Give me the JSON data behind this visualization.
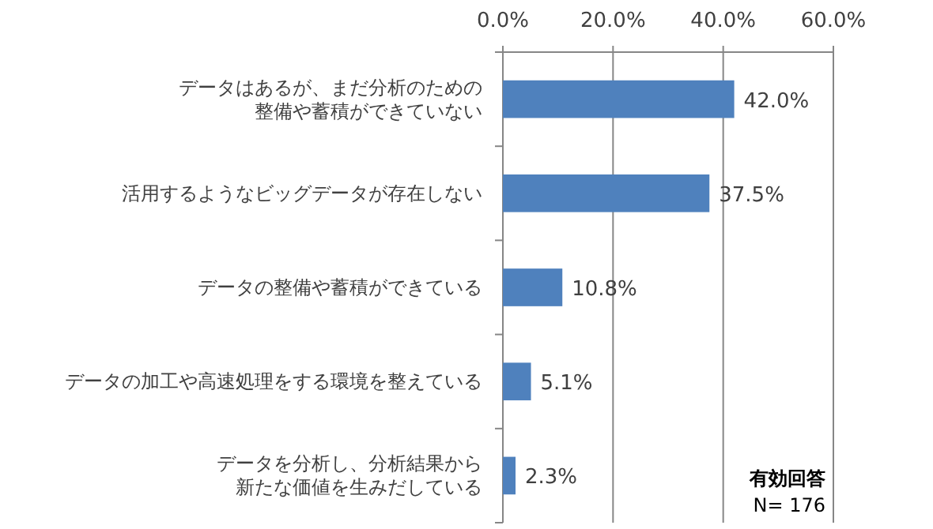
{
  "chart_data": {
    "type": "bar",
    "orientation": "horizontal",
    "categories": [
      "データはあるが、まだ分析のための整備や蓄積ができていない",
      "活用するようなビッグデータが存在しない",
      "データの整備や蓄積ができている",
      "データの加工や高速処理をする環境を整えている",
      "データを分析し、分析結果から新たな価値を生みだしている"
    ],
    "values": [
      42.0,
      37.5,
      10.8,
      5.1,
      2.3
    ],
    "value_labels": [
      "42.0%",
      "37.5%",
      "10.8%",
      "5.1%",
      "2.3%"
    ],
    "color": "#4f81bd",
    "xlim": [
      0,
      60
    ],
    "xticks": [
      {
        "value": 0,
        "label": "0.0%"
      },
      {
        "value": 20,
        "label": "20.0%"
      },
      {
        "value": 40,
        "label": "40.0%"
      },
      {
        "value": 60,
        "label": "60.0%"
      }
    ],
    "grid": "x",
    "annotations": [
      "有効回答",
      "N= 176"
    ]
  }
}
